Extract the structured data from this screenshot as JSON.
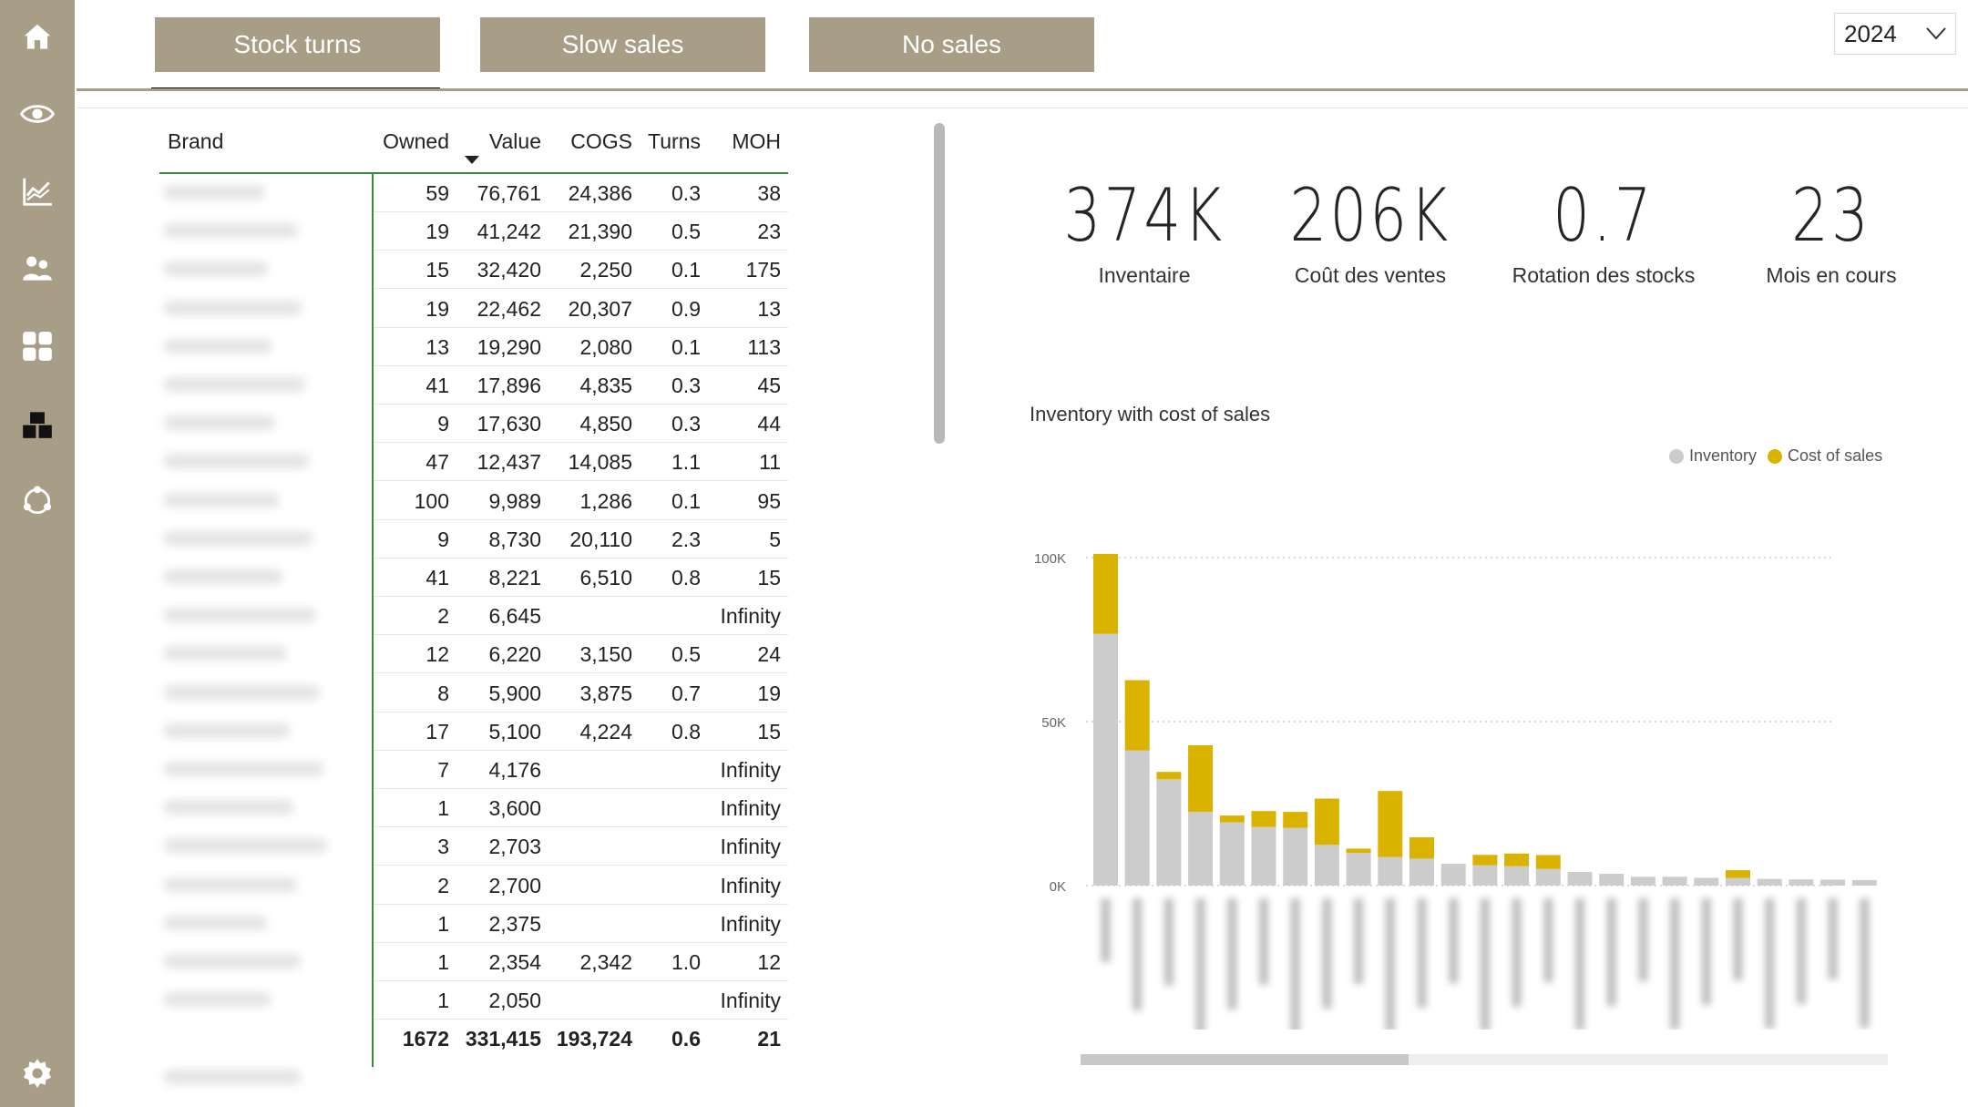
{
  "tabs": [
    "Stock turns",
    "Slow sales",
    "No sales"
  ],
  "year": "2024",
  "table": {
    "headers": {
      "brand": "Brand",
      "owned": "Owned",
      "value": "Value",
      "cogs": "COGS",
      "turns": "Turns",
      "moh": "MOH"
    },
    "rows": [
      {
        "owned": "59",
        "value": "76,761",
        "cogs": "24,386",
        "turns": "0.3",
        "moh": "38"
      },
      {
        "owned": "19",
        "value": "41,242",
        "cogs": "21,390",
        "turns": "0.5",
        "moh": "23"
      },
      {
        "owned": "15",
        "value": "32,420",
        "cogs": "2,250",
        "turns": "0.1",
        "moh": "175"
      },
      {
        "owned": "19",
        "value": "22,462",
        "cogs": "20,307",
        "turns": "0.9",
        "moh": "13"
      },
      {
        "owned": "13",
        "value": "19,290",
        "cogs": "2,080",
        "turns": "0.1",
        "moh": "113"
      },
      {
        "owned": "41",
        "value": "17,896",
        "cogs": "4,835",
        "turns": "0.3",
        "moh": "45"
      },
      {
        "owned": "9",
        "value": "17,630",
        "cogs": "4,850",
        "turns": "0.3",
        "moh": "44"
      },
      {
        "owned": "47",
        "value": "12,437",
        "cogs": "14,085",
        "turns": "1.1",
        "moh": "11"
      },
      {
        "owned": "100",
        "value": "9,989",
        "cogs": "1,286",
        "turns": "0.1",
        "moh": "95"
      },
      {
        "owned": "9",
        "value": "8,730",
        "cogs": "20,110",
        "turns": "2.3",
        "moh": "5"
      },
      {
        "owned": "41",
        "value": "8,221",
        "cogs": "6,510",
        "turns": "0.8",
        "moh": "15"
      },
      {
        "owned": "2",
        "value": "6,645",
        "cogs": "",
        "turns": "",
        "moh": "Infinity"
      },
      {
        "owned": "12",
        "value": "6,220",
        "cogs": "3,150",
        "turns": "0.5",
        "moh": "24"
      },
      {
        "owned": "8",
        "value": "5,900",
        "cogs": "3,875",
        "turns": "0.7",
        "moh": "19"
      },
      {
        "owned": "17",
        "value": "5,100",
        "cogs": "4,224",
        "turns": "0.8",
        "moh": "15"
      },
      {
        "owned": "7",
        "value": "4,176",
        "cogs": "",
        "turns": "",
        "moh": "Infinity"
      },
      {
        "owned": "1",
        "value": "3,600",
        "cogs": "",
        "turns": "",
        "moh": "Infinity"
      },
      {
        "owned": "3",
        "value": "2,703",
        "cogs": "",
        "turns": "",
        "moh": "Infinity"
      },
      {
        "owned": "2",
        "value": "2,700",
        "cogs": "",
        "turns": "",
        "moh": "Infinity"
      },
      {
        "owned": "1",
        "value": "2,375",
        "cogs": "",
        "turns": "",
        "moh": "Infinity"
      },
      {
        "owned": "1",
        "value": "2,354",
        "cogs": "2,342",
        "turns": "1.0",
        "moh": "12"
      },
      {
        "owned": "1",
        "value": "2,050",
        "cogs": "",
        "turns": "",
        "moh": "Infinity"
      }
    ],
    "total": {
      "owned": "1672",
      "value": "331,415",
      "cogs": "193,724",
      "turns": "0.6",
      "moh": "21"
    }
  },
  "kpis": [
    {
      "value": "374K",
      "label": "Inventaire"
    },
    {
      "value": "206K",
      "label": "Coût des ventes"
    },
    {
      "value": "0.7",
      "label": "Rotation des stocks"
    },
    {
      "value": "23",
      "label": "Mois en cours"
    }
  ],
  "chart_data": {
    "type": "bar",
    "stacked": true,
    "title": "Inventory with cost of sales",
    "legend": [
      "Inventory",
      "Cost of sales"
    ],
    "legend_position": "top-right",
    "colors": {
      "inventory": "#cccccc",
      "cost_of_sales": "#d9b300"
    },
    "yticks": [
      "100K",
      "50K",
      "0K"
    ],
    "ylim": [
      0,
      100000
    ],
    "grid": true,
    "series": [
      {
        "name": "Inventory",
        "values": [
          76761,
          41242,
          32420,
          22462,
          19290,
          17896,
          17630,
          12437,
          9989,
          8730,
          8221,
          6645,
          6220,
          5900,
          5100,
          4176,
          3600,
          2703,
          2700,
          2375,
          2354,
          2050,
          1900,
          1800,
          1700
        ]
      },
      {
        "name": "Cost of sales",
        "values": [
          24386,
          21390,
          2250,
          20307,
          2080,
          4835,
          4850,
          14085,
          1286,
          20110,
          6510,
          0,
          3150,
          3875,
          4224,
          0,
          0,
          0,
          0,
          0,
          2342,
          0,
          0,
          0,
          0
        ]
      }
    ]
  }
}
